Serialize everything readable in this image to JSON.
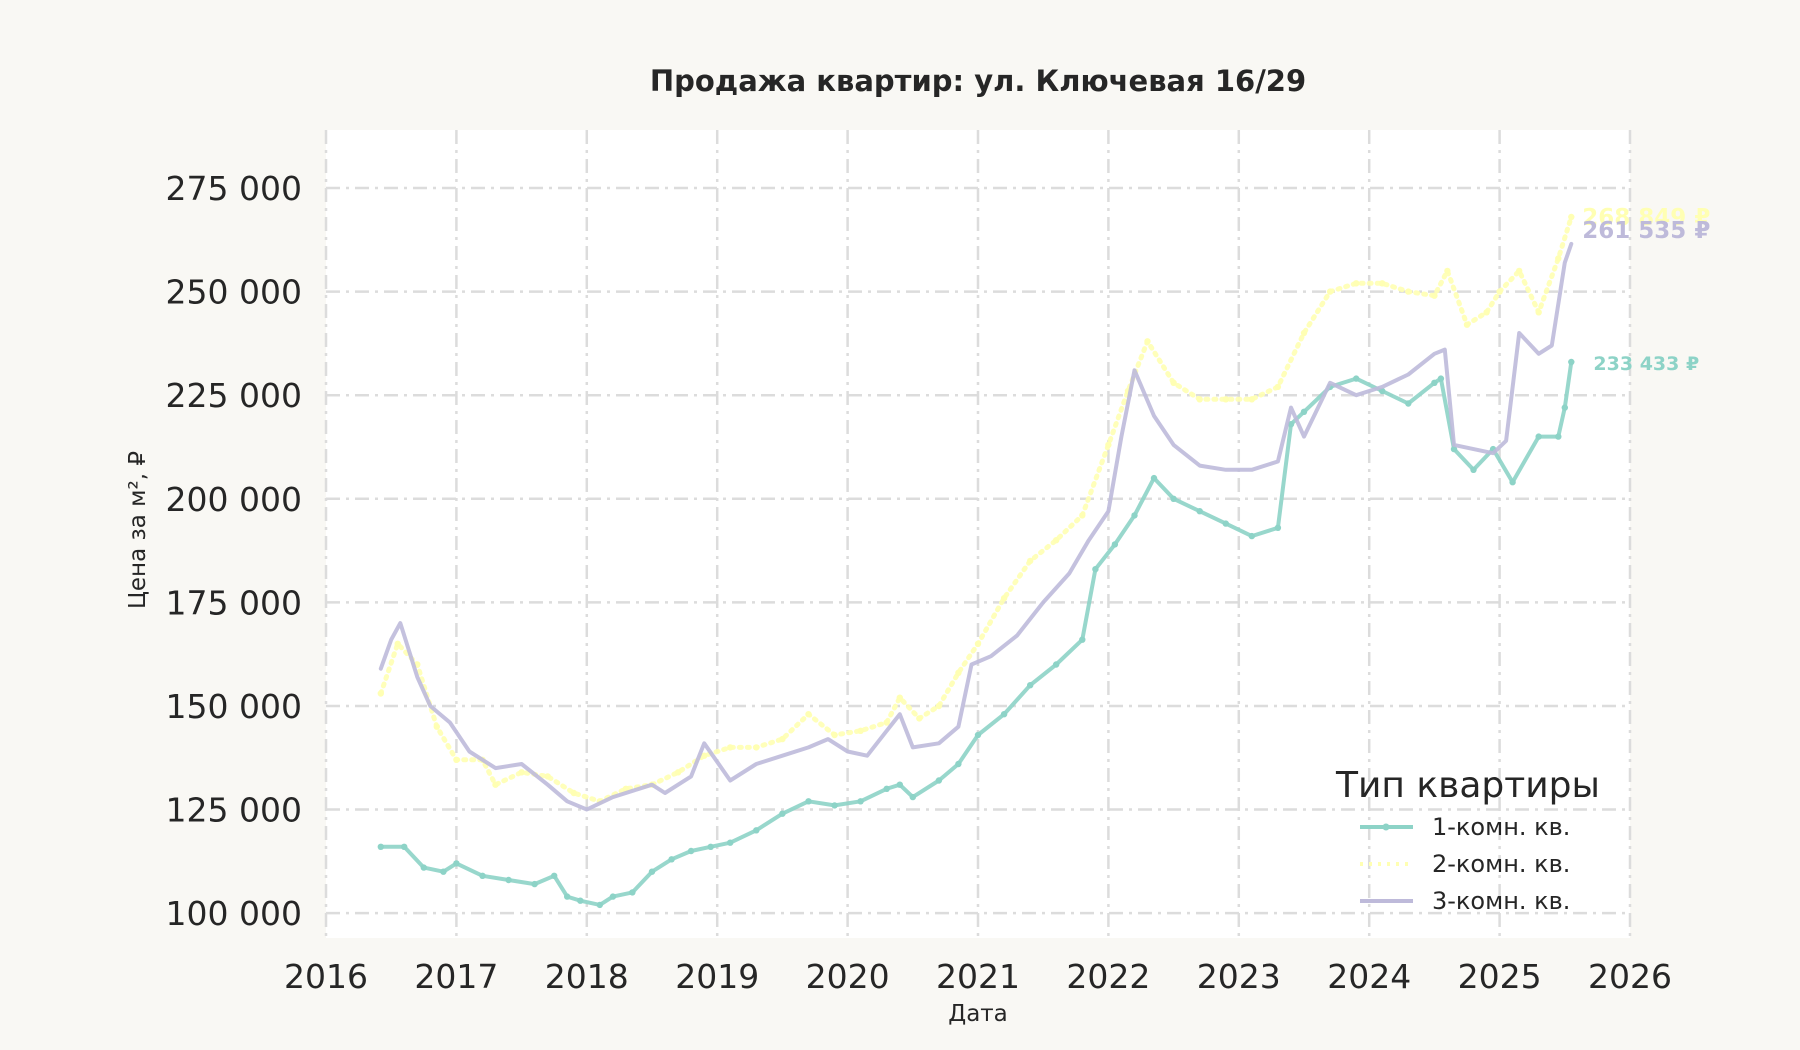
{
  "chart_data": {
    "type": "line",
    "title": "Продажа квартир: ул. Ключевая 16/29",
    "xlabel": "Дата",
    "ylabel": "Цена за м², ₽",
    "xlim": [
      2016.0,
      2026.0
    ],
    "ylim": [
      94000,
      289000
    ],
    "x_ticks": [
      2016,
      2017,
      2018,
      2019,
      2020,
      2021,
      2022,
      2023,
      2024,
      2025,
      2026
    ],
    "x_tick_labels": [
      "2016",
      "2017",
      "2018",
      "2019",
      "2020",
      "2021",
      "2022",
      "2023",
      "2024",
      "2025",
      "2026"
    ],
    "y_ticks": [
      100000,
      125000,
      150000,
      175000,
      200000,
      225000,
      250000,
      275000
    ],
    "y_tick_labels": [
      "100 000",
      "125 000",
      "150 000",
      "175 000",
      "200 000",
      "225 000",
      "250 000",
      "275 000"
    ],
    "grid": true,
    "legend": {
      "title": "Тип квартиры",
      "placement": "lower-right"
    },
    "series": [
      {
        "name": "1-комн. кв.",
        "color": "#8dd3c7",
        "style": "solid-marker",
        "end_label": "233 433 ₽",
        "x": [
          2016.42,
          2016.6,
          2016.75,
          2016.9,
          2017.0,
          2017.2,
          2017.4,
          2017.6,
          2017.75,
          2017.85,
          2017.95,
          2018.1,
          2018.2,
          2018.35,
          2018.5,
          2018.65,
          2018.8,
          2018.95,
          2019.1,
          2019.3,
          2019.5,
          2019.7,
          2019.9,
          2020.1,
          2020.3,
          2020.4,
          2020.5,
          2020.7,
          2020.85,
          2021.0,
          2021.2,
          2021.4,
          2021.6,
          2021.8,
          2021.9,
          2022.05,
          2022.2,
          2022.35,
          2022.5,
          2022.7,
          2022.9,
          2023.1,
          2023.3,
          2023.4,
          2023.5,
          2023.7,
          2023.9,
          2024.1,
          2024.3,
          2024.5,
          2024.55,
          2024.65,
          2024.8,
          2024.95,
          2025.1,
          2025.3,
          2025.45,
          2025.5,
          2025.55
        ],
        "values": [
          116000,
          116000,
          111000,
          110000,
          112000,
          109000,
          108000,
          107000,
          109000,
          104000,
          103000,
          102000,
          104000,
          105000,
          110000,
          113000,
          115000,
          116000,
          117000,
          120000,
          124000,
          127000,
          126000,
          127000,
          130000,
          131000,
          128000,
          132000,
          136000,
          143000,
          148000,
          155000,
          160000,
          166000,
          183000,
          189000,
          196000,
          205000,
          200000,
          197000,
          194000,
          191000,
          193000,
          218000,
          221000,
          227000,
          229000,
          226000,
          223000,
          228000,
          229000,
          212000,
          207000,
          212000,
          204000,
          215000,
          215000,
          222000,
          233000
        ]
      },
      {
        "name": "2-комн. кв.",
        "color": "#ffffb3",
        "style": "dotted-marker",
        "end_label": "268 849 ₽",
        "x": [
          2016.42,
          2016.55,
          2016.7,
          2016.85,
          2017.0,
          2017.2,
          2017.3,
          2017.5,
          2017.7,
          2017.9,
          2018.1,
          2018.3,
          2018.5,
          2018.7,
          2018.9,
          2019.1,
          2019.3,
          2019.5,
          2019.7,
          2019.9,
          2020.1,
          2020.3,
          2020.4,
          2020.55,
          2020.7,
          2020.85,
          2021.0,
          2021.2,
          2021.4,
          2021.6,
          2021.8,
          2022.0,
          2022.15,
          2022.3,
          2022.5,
          2022.7,
          2022.9,
          2023.1,
          2023.3,
          2023.5,
          2023.7,
          2023.9,
          2024.1,
          2024.3,
          2024.5,
          2024.6,
          2024.75,
          2024.9,
          2025.0,
          2025.15,
          2025.3,
          2025.45,
          2025.55
        ],
        "values": [
          153000,
          165000,
          160000,
          145000,
          137000,
          137000,
          131000,
          134000,
          133000,
          129000,
          127000,
          130000,
          131000,
          134000,
          138000,
          140000,
          140000,
          142000,
          148000,
          143000,
          144000,
          146000,
          152000,
          147000,
          150000,
          158000,
          165000,
          176000,
          185000,
          190000,
          196000,
          213000,
          226000,
          238000,
          228000,
          224000,
          224000,
          224000,
          227000,
          240000,
          250000,
          252000,
          252000,
          250000,
          249000,
          255000,
          242000,
          245000,
          250000,
          255000,
          245000,
          258000,
          268000
        ]
      },
      {
        "name": "3-комн. кв.",
        "color": "#bebada",
        "style": "solid",
        "end_label": "261 535 ₽",
        "x": [
          2016.42,
          2016.5,
          2016.57,
          2016.7,
          2016.8,
          2016.95,
          2017.1,
          2017.3,
          2017.5,
          2017.7,
          2017.85,
          2018.0,
          2018.2,
          2018.4,
          2018.5,
          2018.6,
          2018.8,
          2018.9,
          2019.1,
          2019.3,
          2019.5,
          2019.7,
          2019.85,
          2020.0,
          2020.15,
          2020.3,
          2020.4,
          2020.5,
          2020.7,
          2020.85,
          2020.95,
          2021.1,
          2021.3,
          2021.5,
          2021.7,
          2021.85,
          2022.0,
          2022.1,
          2022.2,
          2022.35,
          2022.5,
          2022.7,
          2022.9,
          2023.1,
          2023.3,
          2023.4,
          2023.5,
          2023.7,
          2023.9,
          2024.1,
          2024.3,
          2024.5,
          2024.58,
          2024.65,
          2024.8,
          2024.95,
          2025.05,
          2025.15,
          2025.3,
          2025.4,
          2025.5,
          2025.55
        ],
        "values": [
          159000,
          166000,
          170000,
          157000,
          150000,
          146000,
          139000,
          135000,
          136000,
          131000,
          127000,
          125000,
          128000,
          130000,
          131000,
          129000,
          133000,
          141000,
          132000,
          136000,
          138000,
          140000,
          142000,
          139000,
          138000,
          144000,
          148000,
          140000,
          141000,
          145000,
          160000,
          162000,
          167000,
          175000,
          182000,
          190000,
          197000,
          215000,
          231000,
          220000,
          213000,
          208000,
          207000,
          207000,
          209000,
          222000,
          215000,
          228000,
          225000,
          227000,
          230000,
          235000,
          236000,
          213000,
          212000,
          211000,
          214000,
          240000,
          235000,
          237000,
          257000,
          261500
        ]
      }
    ]
  }
}
